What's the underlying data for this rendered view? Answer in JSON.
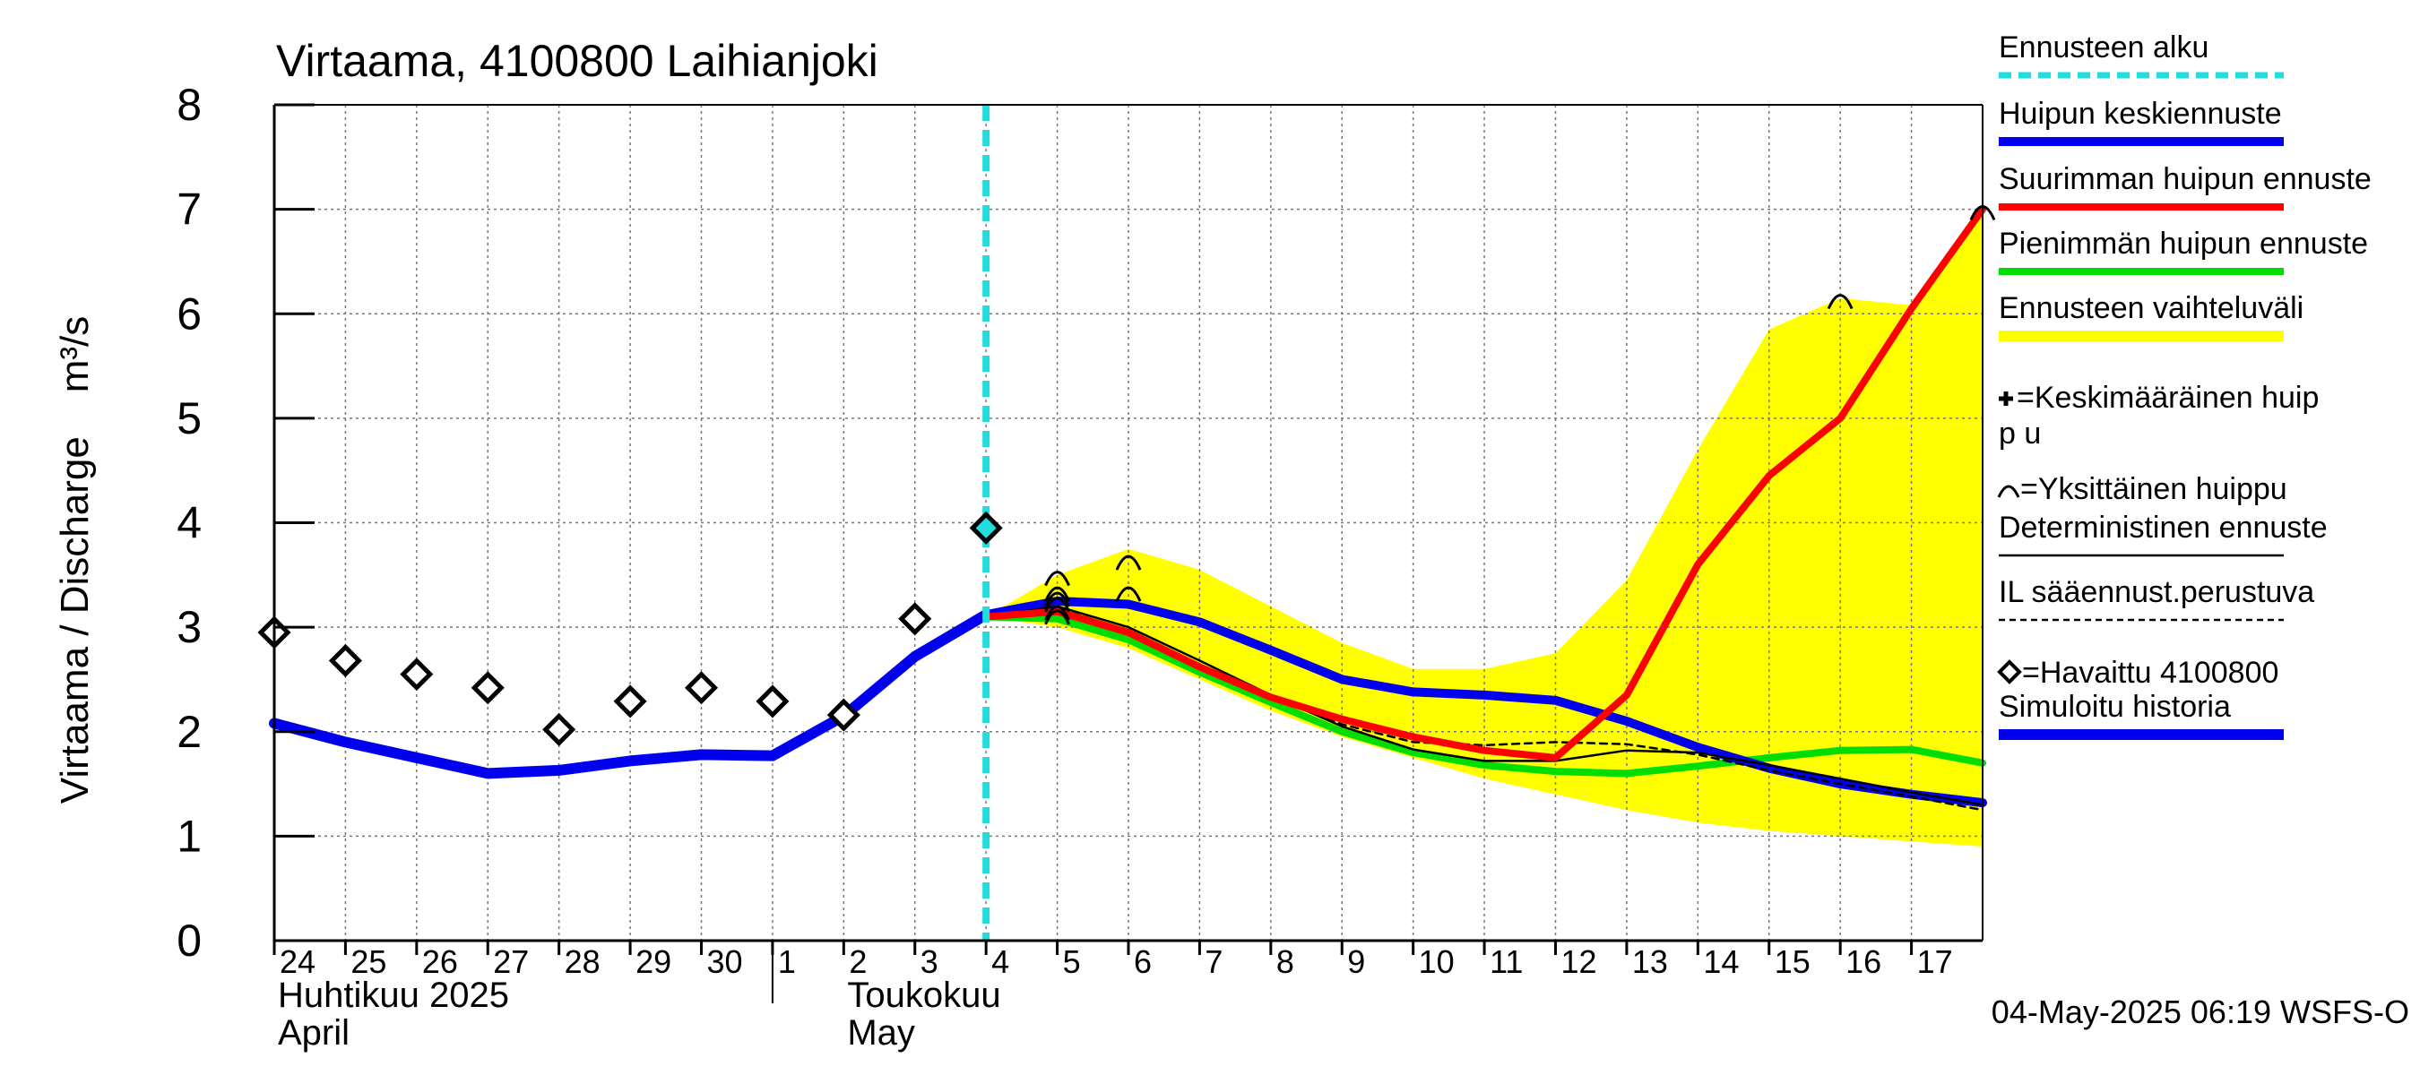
{
  "chart_data": {
    "type": "line",
    "title": "Virtaama, 4100800 Laihianjoki",
    "ylabel": "Virtaama / Discharge    m³/s",
    "ylim": [
      0,
      8
    ],
    "yticks": [
      "0",
      "1",
      "2",
      "3",
      "4",
      "5",
      "6",
      "7",
      "8"
    ],
    "x_days": [
      "24",
      "25",
      "26",
      "27",
      "28",
      "29",
      "30",
      "1",
      "2",
      "3",
      "4",
      "5",
      "6",
      "7",
      "8",
      "9",
      "10",
      "11",
      "12",
      "13",
      "14",
      "15",
      "16",
      "17"
    ],
    "month_labels": [
      {
        "day_index": 0,
        "lines": [
          "Huhtikuu  2025",
          "April"
        ]
      },
      {
        "day_index": 8,
        "lines": [
          "Toukokuu",
          "May"
        ]
      }
    ],
    "forecast_start_day_index": 10,
    "footer": "04-May-2025 06:19 WSFS-O",
    "legend": [
      {
        "key": "forecast_start",
        "label": "Ennusteen alku"
      },
      {
        "key": "mean_peak",
        "label": "Huipun keskiennuste"
      },
      {
        "key": "max_peak",
        "label": "Suurimman huipun ennuste"
      },
      {
        "key": "min_peak",
        "label": "Pienimmän huipun ennuste"
      },
      {
        "key": "range",
        "label": "Ennusteen vaihteluväli"
      },
      {
        "key": "avg_peak_marker",
        "label": "=Keskimääräinen huipp u"
      },
      {
        "key": "single_peak_marker",
        "label": "=Yksittäinen huippu"
      },
      {
        "key": "deterministic",
        "label": "Deterministinen ennuste"
      },
      {
        "key": "il_forecast",
        "label": "IL sääennust.perustuva"
      },
      {
        "key": "observed",
        "label": "=Havaittu 4100800"
      },
      {
        "key": "simulated",
        "label": "Simuloitu historia"
      }
    ],
    "colors": {
      "forecast_start": "#22dddd",
      "mean_peak": "#0000ee",
      "max_peak": "#ff0000",
      "min_peak": "#00dd00",
      "range": "#ffff00",
      "deterministic": "#000000",
      "simulated": "#0000ee"
    },
    "series": {
      "simulated": [
        [
          0,
          2.08
        ],
        [
          1,
          1.9
        ],
        [
          2,
          1.75
        ],
        [
          3,
          1.6
        ],
        [
          4,
          1.63
        ],
        [
          5,
          1.72
        ],
        [
          6,
          1.78
        ],
        [
          7,
          1.77
        ],
        [
          8,
          2.15
        ],
        [
          9,
          2.72
        ],
        [
          10,
          3.12
        ]
      ],
      "observed": [
        [
          0,
          2.95
        ],
        [
          1,
          2.68
        ],
        [
          2,
          2.55
        ],
        [
          3,
          2.42
        ],
        [
          4,
          2.02
        ],
        [
          5,
          2.29
        ],
        [
          6,
          2.42
        ],
        [
          7,
          2.29
        ],
        [
          8,
          2.16
        ],
        [
          9,
          3.08
        ],
        [
          10,
          3.95
        ]
      ],
      "range_upper": [
        [
          10,
          3.1
        ],
        [
          11,
          3.5
        ],
        [
          12,
          3.75
        ],
        [
          13,
          3.55
        ],
        [
          14,
          3.2
        ],
        [
          15,
          2.85
        ],
        [
          16,
          2.6
        ],
        [
          17,
          2.6
        ],
        [
          18,
          2.75
        ],
        [
          19,
          3.45
        ],
        [
          20,
          4.7
        ],
        [
          21,
          5.85
        ],
        [
          22,
          6.15
        ],
        [
          23,
          6.08
        ],
        [
          24,
          7.02
        ]
      ],
      "range_lower": [
        [
          10,
          3.1
        ],
        [
          11,
          3.0
        ],
        [
          12,
          2.8
        ],
        [
          13,
          2.5
        ],
        [
          14,
          2.2
        ],
        [
          15,
          1.95
        ],
        [
          16,
          1.75
        ],
        [
          17,
          1.55
        ],
        [
          18,
          1.4
        ],
        [
          19,
          1.25
        ],
        [
          20,
          1.13
        ],
        [
          21,
          1.05
        ],
        [
          22,
          1.0
        ],
        [
          23,
          0.95
        ],
        [
          24,
          0.9
        ]
      ],
      "max_peak": [
        [
          10,
          3.1
        ],
        [
          11,
          3.15
        ],
        [
          12,
          2.95
        ],
        [
          13,
          2.62
        ],
        [
          14,
          2.33
        ],
        [
          15,
          2.12
        ],
        [
          16,
          1.95
        ],
        [
          17,
          1.82
        ],
        [
          18,
          1.75
        ],
        [
          19,
          2.35
        ],
        [
          20,
          3.6
        ],
        [
          21,
          4.45
        ],
        [
          22,
          5.0
        ],
        [
          23,
          6.05
        ],
        [
          24,
          7.0
        ]
      ],
      "min_peak": [
        [
          10,
          3.1
        ],
        [
          11,
          3.08
        ],
        [
          12,
          2.88
        ],
        [
          13,
          2.57
        ],
        [
          14,
          2.28
        ],
        [
          15,
          2.0
        ],
        [
          16,
          1.8
        ],
        [
          17,
          1.68
        ],
        [
          18,
          1.62
        ],
        [
          19,
          1.6
        ],
        [
          20,
          1.67
        ],
        [
          21,
          1.75
        ],
        [
          22,
          1.82
        ],
        [
          23,
          1.83
        ],
        [
          24,
          1.7
        ]
      ],
      "mean_peak": [
        [
          10,
          3.12
        ],
        [
          11,
          3.25
        ],
        [
          12,
          3.22
        ],
        [
          13,
          3.05
        ],
        [
          14,
          2.78
        ],
        [
          15,
          2.5
        ],
        [
          16,
          2.38
        ],
        [
          17,
          2.35
        ],
        [
          18,
          2.3
        ],
        [
          19,
          2.1
        ],
        [
          20,
          1.85
        ],
        [
          21,
          1.65
        ],
        [
          22,
          1.5
        ],
        [
          23,
          1.4
        ],
        [
          24,
          1.32
        ]
      ],
      "deterministic": [
        [
          10,
          3.1
        ],
        [
          11,
          3.2
        ],
        [
          12,
          3.0
        ],
        [
          13,
          2.68
        ],
        [
          14,
          2.35
        ],
        [
          15,
          2.05
        ],
        [
          16,
          1.83
        ],
        [
          17,
          1.72
        ],
        [
          18,
          1.72
        ],
        [
          19,
          1.82
        ],
        [
          20,
          1.8
        ],
        [
          21,
          1.68
        ],
        [
          22,
          1.55
        ],
        [
          23,
          1.42
        ],
        [
          24,
          1.3
        ]
      ],
      "il_forecast": [
        [
          10,
          3.1
        ],
        [
          11,
          3.18
        ],
        [
          12,
          2.97
        ],
        [
          13,
          2.63
        ],
        [
          14,
          2.33
        ],
        [
          15,
          2.07
        ],
        [
          16,
          1.9
        ],
        [
          17,
          1.87
        ],
        [
          18,
          1.9
        ],
        [
          19,
          1.88
        ],
        [
          20,
          1.78
        ],
        [
          21,
          1.63
        ],
        [
          22,
          1.5
        ],
        [
          23,
          1.38
        ],
        [
          24,
          1.25
        ]
      ],
      "single_peaks": [
        [
          11,
          3.45
        ],
        [
          11,
          3.3
        ],
        [
          11,
          3.25
        ],
        [
          11,
          3.2
        ],
        [
          11,
          3.12
        ],
        [
          11,
          3.08
        ],
        [
          12,
          3.6
        ],
        [
          12,
          3.3
        ],
        [
          22,
          6.1
        ],
        [
          24,
          6.95
        ]
      ]
    }
  }
}
